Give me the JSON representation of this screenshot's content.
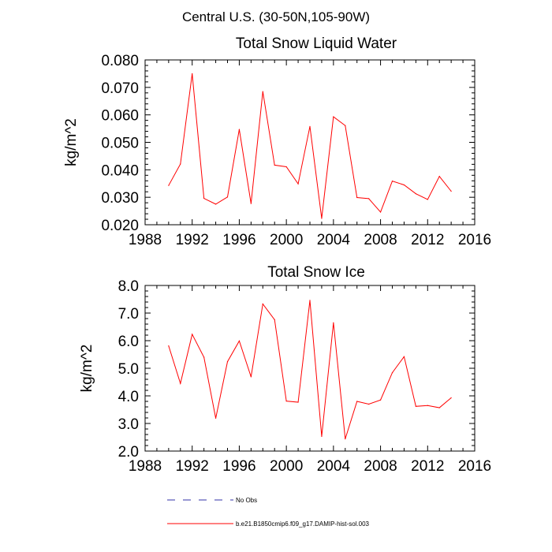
{
  "suptitle": "Central U.S. (30-50N,105-90W)",
  "chart_data": [
    {
      "type": "line",
      "title": "Total Snow Liquid Water",
      "ylabel": "kg/m^2",
      "xlabel": "",
      "xlim": [
        1988,
        2016
      ],
      "ylim": [
        0.02,
        0.08
      ],
      "x_ticks": [
        1988,
        1992,
        1996,
        2000,
        2004,
        2008,
        2012,
        2016
      ],
      "x_tick_labels": [
        "1988",
        "1992",
        "1996",
        "2000",
        "2004",
        "2008",
        "2012",
        "2016"
      ],
      "y_ticks": [
        0.02,
        0.03,
        0.04,
        0.05,
        0.06,
        0.07,
        0.08
      ],
      "y_tick_labels": [
        "0.020",
        "0.030",
        "0.040",
        "0.050",
        "0.060",
        "0.070",
        "0.080"
      ],
      "grid": false,
      "series": [
        {
          "color": "#ff0000",
          "x": [
            1990,
            1991,
            1992,
            1993,
            1994,
            1995,
            1996,
            1997,
            1998,
            1999,
            2000,
            2001,
            2002,
            2003,
            2004,
            2005,
            2006,
            2007,
            2008,
            2009,
            2010,
            2011,
            2012,
            2013,
            2014
          ],
          "values": [
            0.0343,
            0.0421,
            0.075,
            0.0296,
            0.0275,
            0.0301,
            0.0547,
            0.0277,
            0.0685,
            0.0417,
            0.0411,
            0.0349,
            0.0558,
            0.0223,
            0.0593,
            0.0561,
            0.0299,
            0.0295,
            0.0246,
            0.0359,
            0.0345,
            0.0313,
            0.0292,
            0.0376,
            0.0322
          ]
        }
      ]
    },
    {
      "type": "line",
      "title": "Total Snow Ice",
      "ylabel": "kg/m^2",
      "xlabel": "",
      "xlim": [
        1988,
        2016
      ],
      "ylim": [
        2.0,
        8.0
      ],
      "x_ticks": [
        1988,
        1992,
        1996,
        2000,
        2004,
        2008,
        2012,
        2016
      ],
      "x_tick_labels": [
        "1988",
        "1992",
        "1996",
        "2000",
        "2004",
        "2008",
        "2012",
        "2016"
      ],
      "y_ticks": [
        2.0,
        3.0,
        4.0,
        5.0,
        6.0,
        7.0,
        8.0
      ],
      "y_tick_labels": [
        "2.0",
        "3.0",
        "4.0",
        "5.0",
        "6.0",
        "7.0",
        "8.0"
      ],
      "grid": false,
      "series": [
        {
          "color": "#ff0000",
          "x": [
            1990,
            1991,
            1992,
            1993,
            1994,
            1995,
            1996,
            1997,
            1998,
            1999,
            2000,
            2001,
            2002,
            2003,
            2004,
            2005,
            2006,
            2007,
            2008,
            2009,
            2010,
            2011,
            2012,
            2013,
            2014
          ],
          "values": [
            5.81,
            4.45,
            6.23,
            5.4,
            3.19,
            5.24,
            5.99,
            4.69,
            7.33,
            6.76,
            3.81,
            3.77,
            7.46,
            2.53,
            6.65,
            2.44,
            3.8,
            3.7,
            3.85,
            4.84,
            5.42,
            3.62,
            3.65,
            3.57,
            3.93
          ]
        }
      ]
    }
  ],
  "legend": {
    "placement": "bottom",
    "items": [
      {
        "label": "No Obs",
        "color": "#3333aa",
        "style": "dashed"
      },
      {
        "label": "b.e21.B1850cmip6.f09_g17.DAMIP-hist-sol.003",
        "color": "#ff0000",
        "style": "solid"
      }
    ]
  }
}
